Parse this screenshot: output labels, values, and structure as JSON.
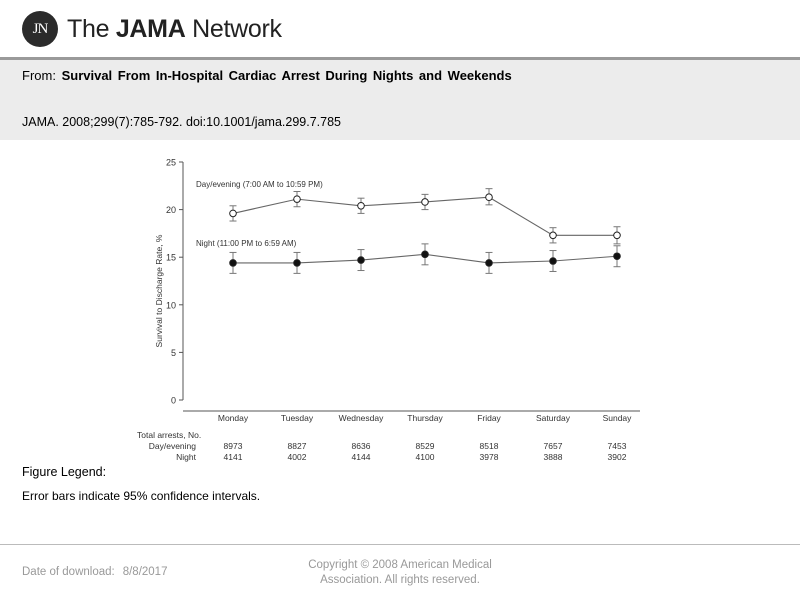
{
  "brand": {
    "logo_mark": "JN",
    "name_prefix": "The ",
    "name_bold": "JAMA",
    "name_suffix": " Network"
  },
  "header": {
    "from_label": "From:",
    "article_title": "Survival From In-Hospital Cardiac Arrest During Nights and Weekends",
    "citation": "JAMA. 2008;299(7):785-792. doi:10.1001/jama.299.7.785"
  },
  "chart_data": {
    "type": "line",
    "ylabel": "Survival to Discharge Rate, %",
    "ylim": [
      0,
      25
    ],
    "yticks": [
      0,
      5,
      10,
      15,
      20,
      25
    ],
    "categories": [
      "Monday",
      "Tuesday",
      "Wednesday",
      "Thursday",
      "Friday",
      "Saturday",
      "Sunday"
    ],
    "series": [
      {
        "name": "Day/evening (7:00 AM to 10:59 PM)",
        "marker": "open",
        "values": [
          19.6,
          21.1,
          20.4,
          20.8,
          21.3,
          17.3,
          17.3
        ],
        "ci_low": [
          18.8,
          20.3,
          19.6,
          20.0,
          20.5,
          16.5,
          16.4
        ],
        "ci_high": [
          20.4,
          21.9,
          21.2,
          21.6,
          22.2,
          18.1,
          18.2
        ]
      },
      {
        "name": "Night (11:00 PM to 6:59 AM)",
        "marker": "filled",
        "values": [
          14.4,
          14.4,
          14.7,
          15.3,
          14.4,
          14.6,
          15.1
        ],
        "ci_low": [
          13.3,
          13.3,
          13.6,
          14.2,
          13.3,
          13.5,
          14.0
        ],
        "ci_high": [
          15.5,
          15.5,
          15.8,
          16.4,
          15.5,
          15.7,
          16.2
        ]
      }
    ],
    "table": {
      "title": "Total arrests, No.",
      "rows": [
        {
          "label": "Day/evening",
          "values": [
            "8973",
            "8827",
            "8636",
            "8529",
            "8518",
            "7657",
            "7453"
          ]
        },
        {
          "label": "Night",
          "values": [
            "4141",
            "4002",
            "4144",
            "4100",
            "3978",
            "3888",
            "3902"
          ]
        }
      ]
    },
    "grid": false,
    "legend_placement": "inline labels above each series"
  },
  "figure_legend": {
    "heading": "Figure Legend:",
    "text": "Error bars indicate 95% confidence intervals."
  },
  "footer": {
    "download_label": "Date of download:",
    "download_date": "8/8/2017",
    "copyright_line1": "Copyright © 2008 American Medical",
    "copyright_line2": "Association. All rights reserved."
  }
}
